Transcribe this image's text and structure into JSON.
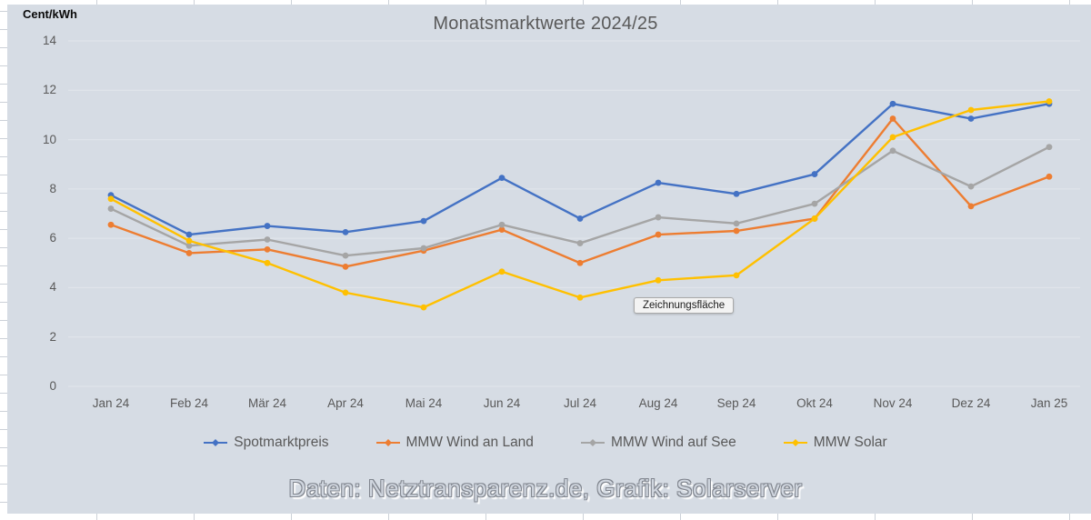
{
  "title": "Monatsmarktwerte 2024/25",
  "y_axis_title": "Cent/kWh",
  "tooltip": "Zeichnungsfläche",
  "caption": "Daten: Netztransparenz.de, Grafik: Solarserver",
  "colors": {
    "background": "#d6dce4",
    "gridline": "#e2e6ec",
    "text": "#595959",
    "spotmarkt_blue": "#4472c4",
    "wind_land_orange": "#ed7d31",
    "wind_see_gray": "#a5a5a5",
    "solar_yellow": "#ffc000"
  },
  "chart_data": {
    "type": "line",
    "title": "Monatsmarktwerte 2024/25",
    "xlabel": "",
    "ylabel": "Cent/kWh",
    "ylim": [
      0,
      14
    ],
    "yticks": [
      0,
      2,
      4,
      6,
      8,
      10,
      12,
      14
    ],
    "grid": true,
    "legend_position": "bottom",
    "categories": [
      "Jan 24",
      "Feb 24",
      "Mär 24",
      "Apr 24",
      "Mai 24",
      "Jun 24",
      "Jul 24",
      "Aug 24",
      "Sep 24",
      "Okt 24",
      "Nov 24",
      "Dez 24",
      "Jan 25"
    ],
    "series": [
      {
        "name": "Spotmarktpreis",
        "color": "#4472c4",
        "values": [
          7.75,
          6.15,
          6.5,
          6.25,
          6.7,
          8.45,
          6.8,
          8.25,
          7.8,
          8.6,
          11.45,
          10.85,
          11.45
        ]
      },
      {
        "name": "MMW Wind an Land",
        "color": "#ed7d31",
        "values": [
          6.55,
          5.4,
          5.55,
          4.85,
          5.5,
          6.35,
          5.0,
          6.15,
          6.3,
          6.8,
          10.85,
          7.3,
          8.5
        ]
      },
      {
        "name": "MMW Wind auf See",
        "color": "#a5a5a5",
        "values": [
          7.2,
          5.7,
          5.95,
          5.3,
          5.6,
          6.55,
          5.8,
          6.85,
          6.6,
          7.4,
          9.55,
          8.1,
          9.7
        ]
      },
      {
        "name": "MMW Solar",
        "color": "#ffc000",
        "values": [
          7.6,
          5.9,
          5.0,
          3.8,
          3.2,
          4.65,
          3.6,
          4.3,
          4.5,
          6.8,
          10.1,
          11.2,
          11.55
        ]
      }
    ]
  }
}
